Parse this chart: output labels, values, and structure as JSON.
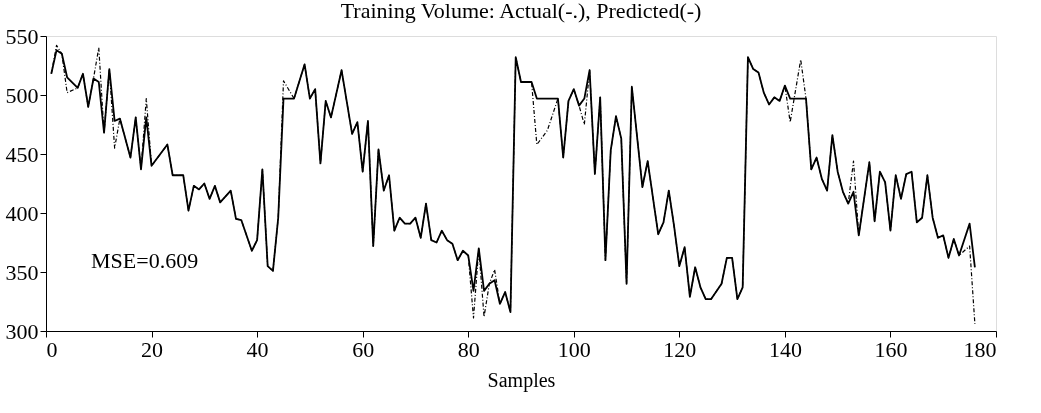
{
  "chart_data": {
    "type": "line",
    "title": "Training Volume:  Actual(-.), Predicted(-)",
    "xlabel": "Samples",
    "x": [
      1,
      2,
      3,
      4,
      6,
      7,
      8,
      9,
      10,
      11,
      12,
      13,
      14,
      16,
      17,
      18,
      19,
      20,
      23,
      24,
      26,
      27,
      28,
      29,
      30,
      31,
      32,
      33,
      35,
      36,
      37,
      39,
      40,
      41,
      42,
      43,
      44,
      45,
      47,
      49,
      50,
      51,
      52,
      53,
      54,
      56,
      58,
      59,
      60,
      61,
      62,
      63,
      64,
      65,
      66,
      67,
      68,
      69,
      70,
      71,
      72,
      73,
      74,
      75,
      76,
      77,
      78,
      79,
      80,
      81,
      82,
      83,
      84,
      85,
      86,
      87,
      88,
      89,
      90,
      92,
      93,
      95,
      97,
      98,
      99,
      100,
      101,
      102,
      103,
      104,
      105,
      106,
      107,
      108,
      109,
      110,
      111,
      113,
      114,
      116,
      117,
      118,
      119,
      120,
      121,
      122,
      123,
      124,
      125,
      126,
      128,
      129,
      130,
      131,
      132,
      133,
      134,
      135,
      136,
      137,
      138,
      139,
      140,
      141,
      143,
      144,
      145,
      146,
      147,
      148,
      149,
      150,
      151,
      152,
      153,
      154,
      156,
      157,
      158,
      159,
      160,
      161,
      162,
      163,
      164,
      165,
      166,
      167,
      168,
      169,
      170,
      171,
      172,
      173,
      175,
      176
    ],
    "series": [
      {
        "color": "#000000",
        "line_style": "dashed",
        "values": [
          518,
          542,
          535,
          502,
          506,
          518,
          490,
          514,
          540,
          468,
          522,
          455,
          480,
          447,
          481,
          437,
          497,
          440,
          458,
          432,
          432,
          402,
          423,
          420,
          425,
          412,
          423,
          409,
          419,
          395,
          394,
          368,
          377,
          437,
          355,
          351,
          396,
          512,
          497,
          526,
          497,
          505,
          442,
          495,
          481,
          521,
          467,
          477,
          435,
          478,
          372,
          454,
          419,
          432,
          385,
          396,
          391,
          391,
          396,
          379,
          408,
          377,
          375,
          385,
          377,
          374,
          360,
          368,
          364,
          311,
          370,
          312,
          340,
          352,
          323,
          333,
          316,
          532,
          511,
          511,
          458,
          470,
          497,
          447,
          495,
          505,
          491,
          475,
          521,
          433,
          498,
          360,
          453,
          482,
          463,
          340,
          507,
          422,
          444,
          382,
          392,
          419,
          389,
          355,
          371,
          329,
          354,
          337,
          327,
          327,
          340,
          362,
          362,
          327,
          337,
          532,
          522,
          519,
          502,
          492,
          498,
          495,
          508,
          477,
          530,
          497,
          437,
          447,
          429,
          419,
          466,
          435,
          418,
          408,
          444,
          381,
          443,
          393,
          435,
          426,
          385,
          432,
          412,
          433,
          435,
          392,
          396,
          432,
          396,
          379,
          381,
          362,
          378,
          364,
          372,
          306
        ]
      },
      {
        "color": "#000000",
        "line_style": "solid",
        "values": [
          518,
          538,
          535,
          515,
          506,
          518,
          490,
          514,
          511,
          468,
          522,
          478,
          480,
          447,
          481,
          437,
          481,
          440,
          458,
          432,
          432,
          402,
          423,
          420,
          425,
          412,
          423,
          409,
          419,
          395,
          394,
          368,
          377,
          437,
          355,
          351,
          396,
          497,
          497,
          526,
          497,
          505,
          442,
          495,
          481,
          521,
          467,
          477,
          435,
          478,
          372,
          454,
          419,
          432,
          385,
          396,
          391,
          391,
          396,
          379,
          408,
          377,
          375,
          385,
          377,
          374,
          360,
          368,
          364,
          334,
          370,
          334,
          340,
          343,
          323,
          333,
          316,
          532,
          511,
          511,
          497,
          497,
          497,
          447,
          495,
          505,
          491,
          497,
          521,
          433,
          498,
          360,
          453,
          482,
          463,
          340,
          507,
          422,
          444,
          382,
          392,
          419,
          389,
          355,
          371,
          329,
          354,
          337,
          327,
          327,
          340,
          362,
          362,
          327,
          337,
          532,
          522,
          519,
          502,
          492,
          498,
          495,
          508,
          497,
          497,
          497,
          437,
          447,
          429,
          419,
          466,
          435,
          418,
          408,
          418,
          381,
          443,
          393,
          435,
          426,
          385,
          432,
          412,
          433,
          435,
          392,
          396,
          432,
          396,
          379,
          381,
          362,
          378,
          364,
          391,
          354
        ]
      }
    ],
    "xlim": [
      0,
      180
    ],
    "xticks": [
      0,
      20,
      40,
      60,
      80,
      100,
      120,
      140,
      160,
      180
    ],
    "ylim": [
      300,
      550
    ],
    "yticks": [
      300,
      350,
      400,
      450,
      500,
      550
    ],
    "annotations": [
      "MSE=0.609"
    ]
  }
}
